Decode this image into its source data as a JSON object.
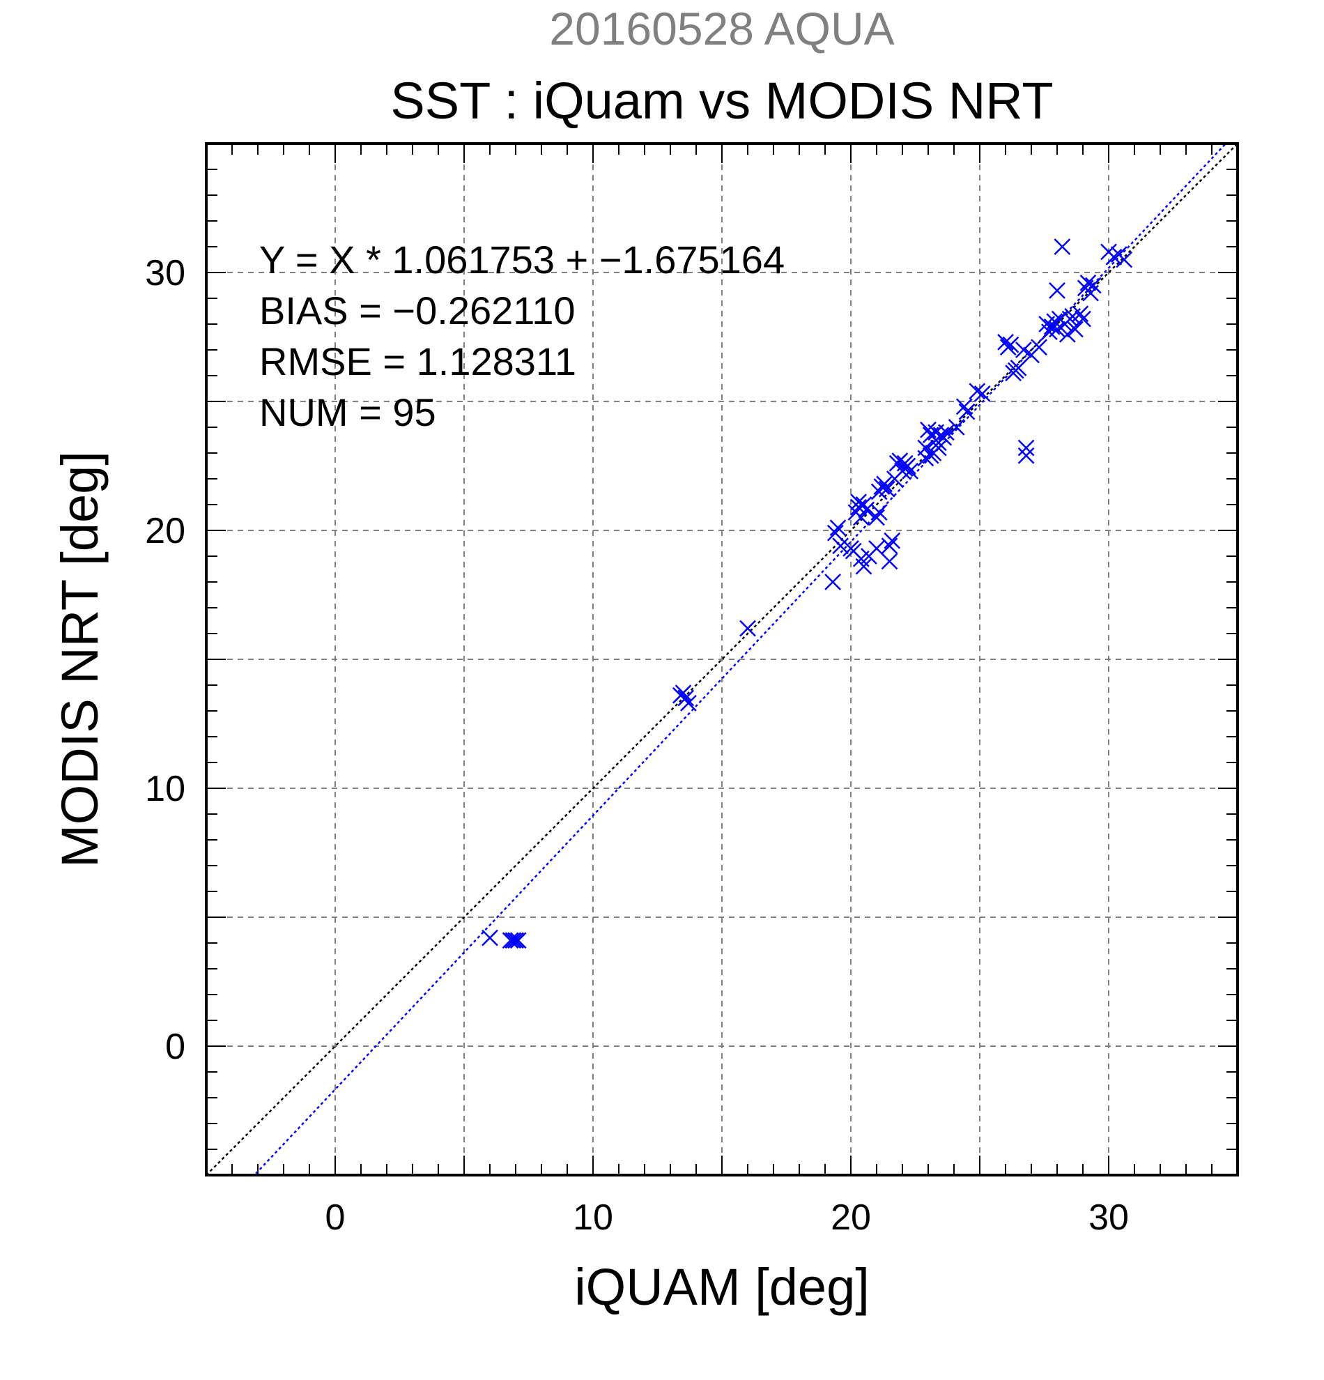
{
  "chart_data": {
    "type": "scatter",
    "title": "20160528 AQUA",
    "subtitle": "SST : iQuam vs MODIS NRT",
    "xlabel": "iQUAM [deg]",
    "ylabel": "MODIS NRT [deg]",
    "xlim": [
      -5,
      35
    ],
    "ylim": [
      -5,
      35
    ],
    "major_ticks": [
      0,
      10,
      20,
      30
    ],
    "tick_labels": [
      "0",
      "10",
      "20",
      "30"
    ],
    "grid": true,
    "grid_values": [
      -5,
      0,
      5,
      10,
      15,
      20,
      25,
      30
    ],
    "marker": "x",
    "colors": {
      "points": "#0000ff",
      "fit_line": "#0000ff",
      "identity_line": "#000000",
      "grid": "#808080"
    },
    "stats": [
      "Y = X * 1.061753 + −1.675164",
      "BIAS = −0.262110",
      "RMSE = 1.128311",
      "NUM = 95"
    ],
    "fit": {
      "slope": 1.061753,
      "intercept": -1.675164
    },
    "identity": {
      "slope": 1,
      "intercept": 0
    },
    "points": [
      [
        6.0,
        4.2
      ],
      [
        6.8,
        4.1
      ],
      [
        6.9,
        4.1
      ],
      [
        7.0,
        4.1
      ],
      [
        7.1,
        4.1
      ],
      [
        13.4,
        13.6
      ],
      [
        13.5,
        13.7
      ],
      [
        13.6,
        13.5
      ],
      [
        13.7,
        13.3
      ],
      [
        16.0,
        16.2
      ],
      [
        19.3,
        18.0
      ],
      [
        19.4,
        19.9
      ],
      [
        19.5,
        20.1
      ],
      [
        19.6,
        19.4
      ],
      [
        20.0,
        19.3
      ],
      [
        20.1,
        19.2
      ],
      [
        20.3,
        20.9
      ],
      [
        20.3,
        21.1
      ],
      [
        20.2,
        20.7
      ],
      [
        20.4,
        20.5
      ],
      [
        20.4,
        18.9
      ],
      [
        20.5,
        18.6
      ],
      [
        20.5,
        21.0
      ],
      [
        20.6,
        20.8
      ],
      [
        20.7,
        19.0
      ],
      [
        21.0,
        19.3
      ],
      [
        21.0,
        20.5
      ],
      [
        21.1,
        20.7
      ],
      [
        21.1,
        21.5
      ],
      [
        21.2,
        21.7
      ],
      [
        21.3,
        21.8
      ],
      [
        21.4,
        21.6
      ],
      [
        21.5,
        18.8
      ],
      [
        21.5,
        19.4
      ],
      [
        21.6,
        19.6
      ],
      [
        21.7,
        22.0
      ],
      [
        21.8,
        22.6
      ],
      [
        21.9,
        22.7
      ],
      [
        22.0,
        22.3
      ],
      [
        22.1,
        22.4
      ],
      [
        22.1,
        22.6
      ],
      [
        22.2,
        22.5
      ],
      [
        22.3,
        22.3
      ],
      [
        22.9,
        22.8
      ],
      [
        22.9,
        23.2
      ],
      [
        23.0,
        23.9
      ],
      [
        23.1,
        23.7
      ],
      [
        23.1,
        22.9
      ],
      [
        23.2,
        23.0
      ],
      [
        23.3,
        23.8
      ],
      [
        23.3,
        23.5
      ],
      [
        23.4,
        23.4
      ],
      [
        23.4,
        23.2
      ],
      [
        23.5,
        23.7
      ],
      [
        23.6,
        23.6
      ],
      [
        23.7,
        23.8
      ],
      [
        24.1,
        24.0
      ],
      [
        24.4,
        24.8
      ],
      [
        24.5,
        24.6
      ],
      [
        24.9,
        25.4
      ],
      [
        25.1,
        25.3
      ],
      [
        26.0,
        27.3
      ],
      [
        26.1,
        27.1
      ],
      [
        26.2,
        27.2
      ],
      [
        26.3,
        26.1
      ],
      [
        26.4,
        26.2
      ],
      [
        26.5,
        26.3
      ],
      [
        26.7,
        27.0
      ],
      [
        26.8,
        23.2
      ],
      [
        26.8,
        22.9
      ],
      [
        27.0,
        26.8
      ],
      [
        27.3,
        27.1
      ],
      [
        27.6,
        28.0
      ],
      [
        27.8,
        27.9
      ],
      [
        27.9,
        28.1
      ],
      [
        28.0,
        27.8
      ],
      [
        28.0,
        29.3
      ],
      [
        28.1,
        28.2
      ],
      [
        28.2,
        31.0
      ],
      [
        28.3,
        28.0
      ],
      [
        28.4,
        27.6
      ],
      [
        28.5,
        28.2
      ],
      [
        28.6,
        28.3
      ],
      [
        28.7,
        27.8
      ],
      [
        28.9,
        28.4
      ],
      [
        29.0,
        28.2
      ],
      [
        29.1,
        29.4
      ],
      [
        29.2,
        29.6
      ],
      [
        29.3,
        29.2
      ],
      [
        29.4,
        29.5
      ],
      [
        30.0,
        30.8
      ],
      [
        30.2,
        30.6
      ],
      [
        30.4,
        30.7
      ],
      [
        30.6,
        30.5
      ],
      [
        27.7,
        27.7
      ]
    ]
  }
}
